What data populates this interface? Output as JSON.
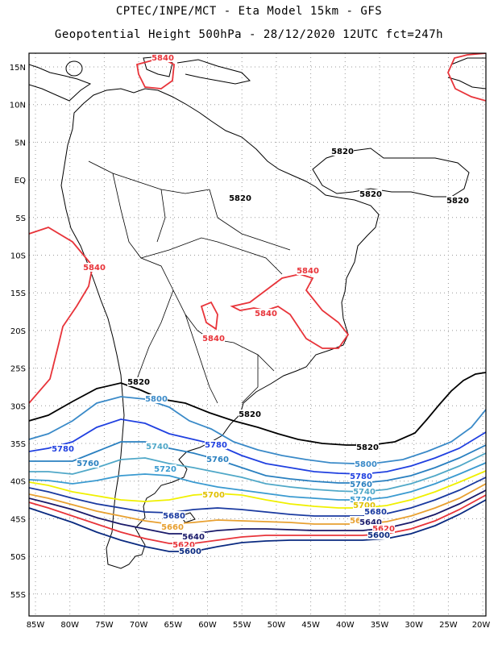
{
  "header": {
    "line1": "CPTEC/INPE/MCT -  Eta Model 15km - GFS",
    "line2": "Geopotential Height 500hPa - 28/12/2020 12UTC fct=247h"
  },
  "map": {
    "lat_ticks": [
      "15N",
      "10N",
      "5N",
      "EQ",
      "5S",
      "10S",
      "15S",
      "20S",
      "25S",
      "30S",
      "35S",
      "40S",
      "45S",
      "50S",
      "55S"
    ],
    "lon_ticks": [
      "85W",
      "80W",
      "75W",
      "70W",
      "65W",
      "60W",
      "55W",
      "50W",
      "45W",
      "40W",
      "35W",
      "30W",
      "25W",
      "20W"
    ],
    "contour_colors": {
      "5580": "#0a2a80",
      "5600": "#e8343a",
      "5620": "#1a1a6a",
      "5640": "#ee6a5a",
      "5660": "#e8a030",
      "5680": "#1a3aa0",
      "5700": "#f0f000",
      "5720": "#3a9ad0",
      "5740": "#50a8c8",
      "5760": "#2a80c0",
      "5780": "#2040e0",
      "5800": "#3a8ac8",
      "5820": "#000000",
      "5840": "#e8343a"
    },
    "labels": [
      {
        "text": "5840",
        "color": "#e8343a",
        "id": "l1"
      },
      {
        "text": "5840",
        "color": "#e8343a",
        "id": "l2"
      },
      {
        "text": "5840",
        "color": "#e8343a",
        "id": "l3"
      },
      {
        "text": "5840",
        "color": "#e8343a",
        "id": "l4"
      },
      {
        "text": "5840",
        "color": "#e8343a",
        "id": "l5"
      },
      {
        "text": "5820",
        "color": "#000000",
        "id": "l6"
      },
      {
        "text": "5820",
        "color": "#000000",
        "id": "l7"
      },
      {
        "text": "5820",
        "color": "#000000",
        "id": "l8"
      },
      {
        "text": "5820",
        "color": "#000000",
        "id": "l9"
      },
      {
        "text": "5820",
        "color": "#000000",
        "id": "l10"
      },
      {
        "text": "5820",
        "color": "#000000",
        "id": "l11"
      },
      {
        "text": "5820",
        "color": "#000000",
        "id": "l12"
      },
      {
        "text": "5800",
        "color": "#3a8ac8",
        "id": "l13"
      },
      {
        "text": "5800",
        "color": "#3a8ac8",
        "id": "l14"
      },
      {
        "text": "5780",
        "color": "#2040e0",
        "id": "l15"
      },
      {
        "text": "5780",
        "color": "#2040e0",
        "id": "l16"
      },
      {
        "text": "5780",
        "color": "#2040e0",
        "id": "l17"
      },
      {
        "text": "5760",
        "color": "#2a80c0",
        "id": "l18"
      },
      {
        "text": "5760",
        "color": "#2a80c0",
        "id": "l19"
      },
      {
        "text": "5760",
        "color": "#2a80c0",
        "id": "l20"
      },
      {
        "text": "5740",
        "color": "#50a8c8",
        "id": "l21"
      },
      {
        "text": "5740",
        "color": "#50a8c8",
        "id": "l22"
      },
      {
        "text": "5720",
        "color": "#3a9ad0",
        "id": "l23"
      },
      {
        "text": "5720",
        "color": "#3a9ad0",
        "id": "l24"
      },
      {
        "text": "5700",
        "color": "#e0c000",
        "id": "l25"
      },
      {
        "text": "5700",
        "color": "#e0c000",
        "id": "l26"
      },
      {
        "text": "5680",
        "color": "#1a3aa0",
        "id": "l27"
      },
      {
        "text": "5680",
        "color": "#1a3aa0",
        "id": "l28"
      },
      {
        "text": "5660",
        "color": "#e8a030",
        "id": "l29"
      },
      {
        "text": "5660",
        "color": "#e8a030",
        "id": "l30"
      },
      {
        "text": "5640",
        "color": "#1a1a6a",
        "id": "l31"
      },
      {
        "text": "5640",
        "color": "#1a1a6a",
        "id": "l32"
      },
      {
        "text": "5620",
        "color": "#e8343a",
        "id": "l33"
      },
      {
        "text": "5620",
        "color": "#e8343a",
        "id": "l34"
      },
      {
        "text": "5600",
        "color": "#0a2a80",
        "id": "l35"
      },
      {
        "text": "5600",
        "color": "#0a2a80",
        "id": "l36"
      }
    ]
  }
}
